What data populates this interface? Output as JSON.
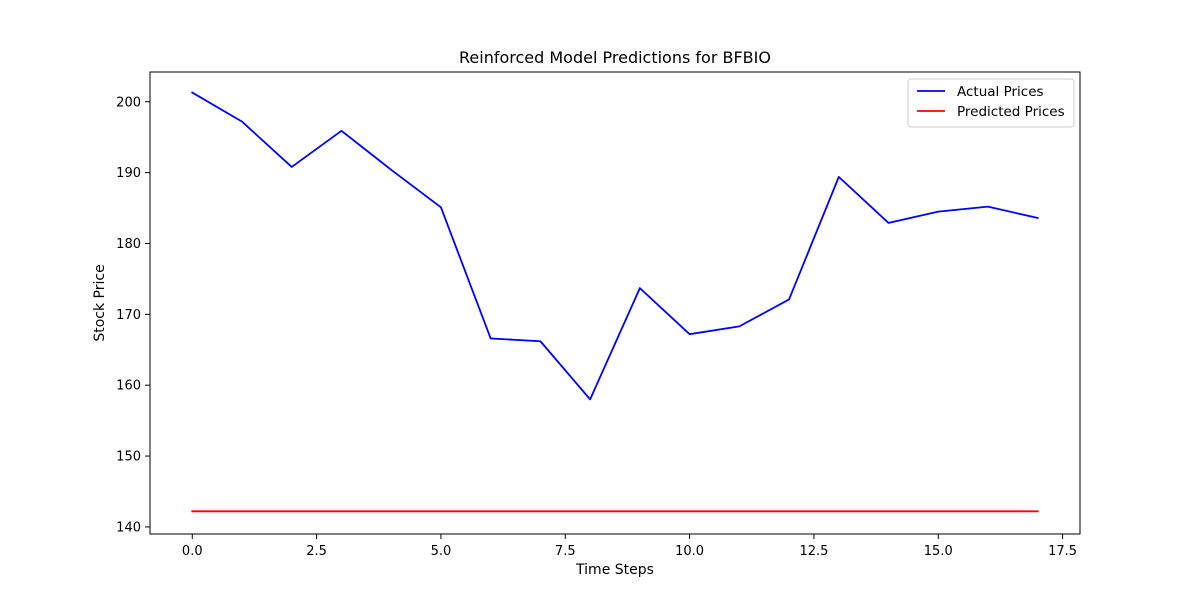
{
  "chart_data": {
    "type": "line",
    "title": "Reinforced Model Predictions for BFBIO",
    "xlabel": "Time Steps",
    "ylabel": "Stock Price",
    "xlim": [
      -0.85,
      17.85
    ],
    "ylim": [
      139.0,
      204.2
    ],
    "xticks": [
      0.0,
      2.5,
      5.0,
      7.5,
      10.0,
      12.5,
      15.0,
      17.5
    ],
    "xtick_labels": [
      "0.0",
      "2.5",
      "5.0",
      "7.5",
      "10.0",
      "12.5",
      "15.0",
      "17.5"
    ],
    "yticks": [
      140,
      150,
      160,
      170,
      180,
      190,
      200
    ],
    "ytick_labels": [
      "140",
      "150",
      "160",
      "170",
      "180",
      "190",
      "200"
    ],
    "grid": false,
    "legend_position": "top-right",
    "x": [
      0,
      1,
      2,
      3,
      4,
      5,
      6,
      7,
      8,
      9,
      10,
      11,
      12,
      13,
      14,
      15,
      16,
      17
    ],
    "series": [
      {
        "name": "Actual Prices",
        "color": "#0000ff",
        "values": [
          201.3,
          197.2,
          190.8,
          195.9,
          190.4,
          185.1,
          166.6,
          166.2,
          158.0,
          173.7,
          167.2,
          168.3,
          172.1,
          189.4,
          182.9,
          184.5,
          185.2,
          183.6
        ]
      },
      {
        "name": "Predicted Prices",
        "color": "#ff0000",
        "values": [
          142.2,
          142.2,
          142.2,
          142.2,
          142.2,
          142.2,
          142.2,
          142.2,
          142.2,
          142.2,
          142.2,
          142.2,
          142.2,
          142.2,
          142.2,
          142.2,
          142.2,
          142.2
        ]
      }
    ]
  }
}
